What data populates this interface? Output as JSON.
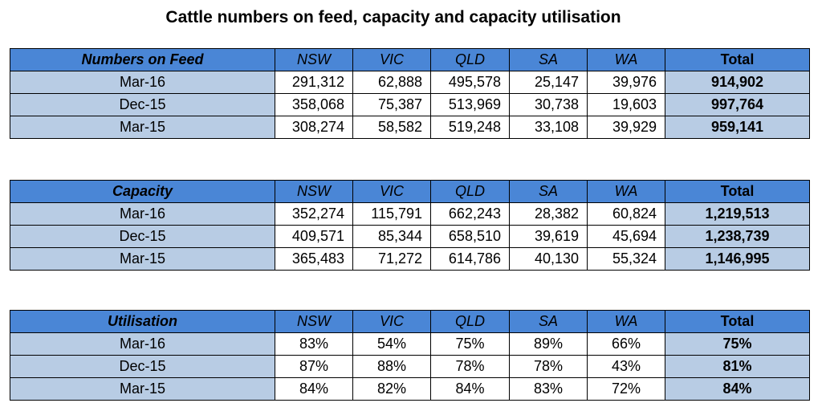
{
  "title": "Cattle numbers on feed, capacity and capacity utilisation",
  "columns": [
    "NSW",
    "VIC",
    "QLD",
    "SA",
    "WA",
    "Total"
  ],
  "tables": [
    {
      "heading": "Numbers on Feed",
      "rows": [
        {
          "label": "Mar-16",
          "values": [
            "291,312",
            "62,888",
            "495,578",
            "25,147",
            "39,976"
          ],
          "total": "914,902"
        },
        {
          "label": "Dec-15",
          "values": [
            "358,068",
            "75,387",
            "513,969",
            "30,738",
            "19,603"
          ],
          "total": "997,764"
        },
        {
          "label": "Mar-15",
          "values": [
            "308,274",
            "58,582",
            "519,248",
            "33,108",
            "39,929"
          ],
          "total": "959,141"
        }
      ]
    },
    {
      "heading": "Capacity",
      "rows": [
        {
          "label": "Mar-16",
          "values": [
            "352,274",
            "115,791",
            "662,243",
            "28,382",
            "60,824"
          ],
          "total": "1,219,513"
        },
        {
          "label": "Dec-15",
          "values": [
            "409,571",
            "85,344",
            "658,510",
            "39,619",
            "45,694"
          ],
          "total": "1,238,739"
        },
        {
          "label": "Mar-15",
          "values": [
            "365,483",
            "71,272",
            "614,786",
            "40,130",
            "55,324"
          ],
          "total": "1,146,995"
        }
      ]
    },
    {
      "heading": "Utilisation",
      "rows": [
        {
          "label": "Mar-16",
          "values": [
            "83%",
            "54%",
            "75%",
            "89%",
            "66%"
          ],
          "total": "75%"
        },
        {
          "label": "Dec-15",
          "values": [
            "87%",
            "88%",
            "78%",
            "78%",
            "43%"
          ],
          "total": "81%"
        },
        {
          "label": "Mar-15",
          "values": [
            "84%",
            "82%",
            "84%",
            "83%",
            "72%"
          ],
          "total": "84%"
        }
      ]
    }
  ],
  "colors": {
    "header_blue": "#4a86d6",
    "label_light_blue": "#b8cce4"
  }
}
